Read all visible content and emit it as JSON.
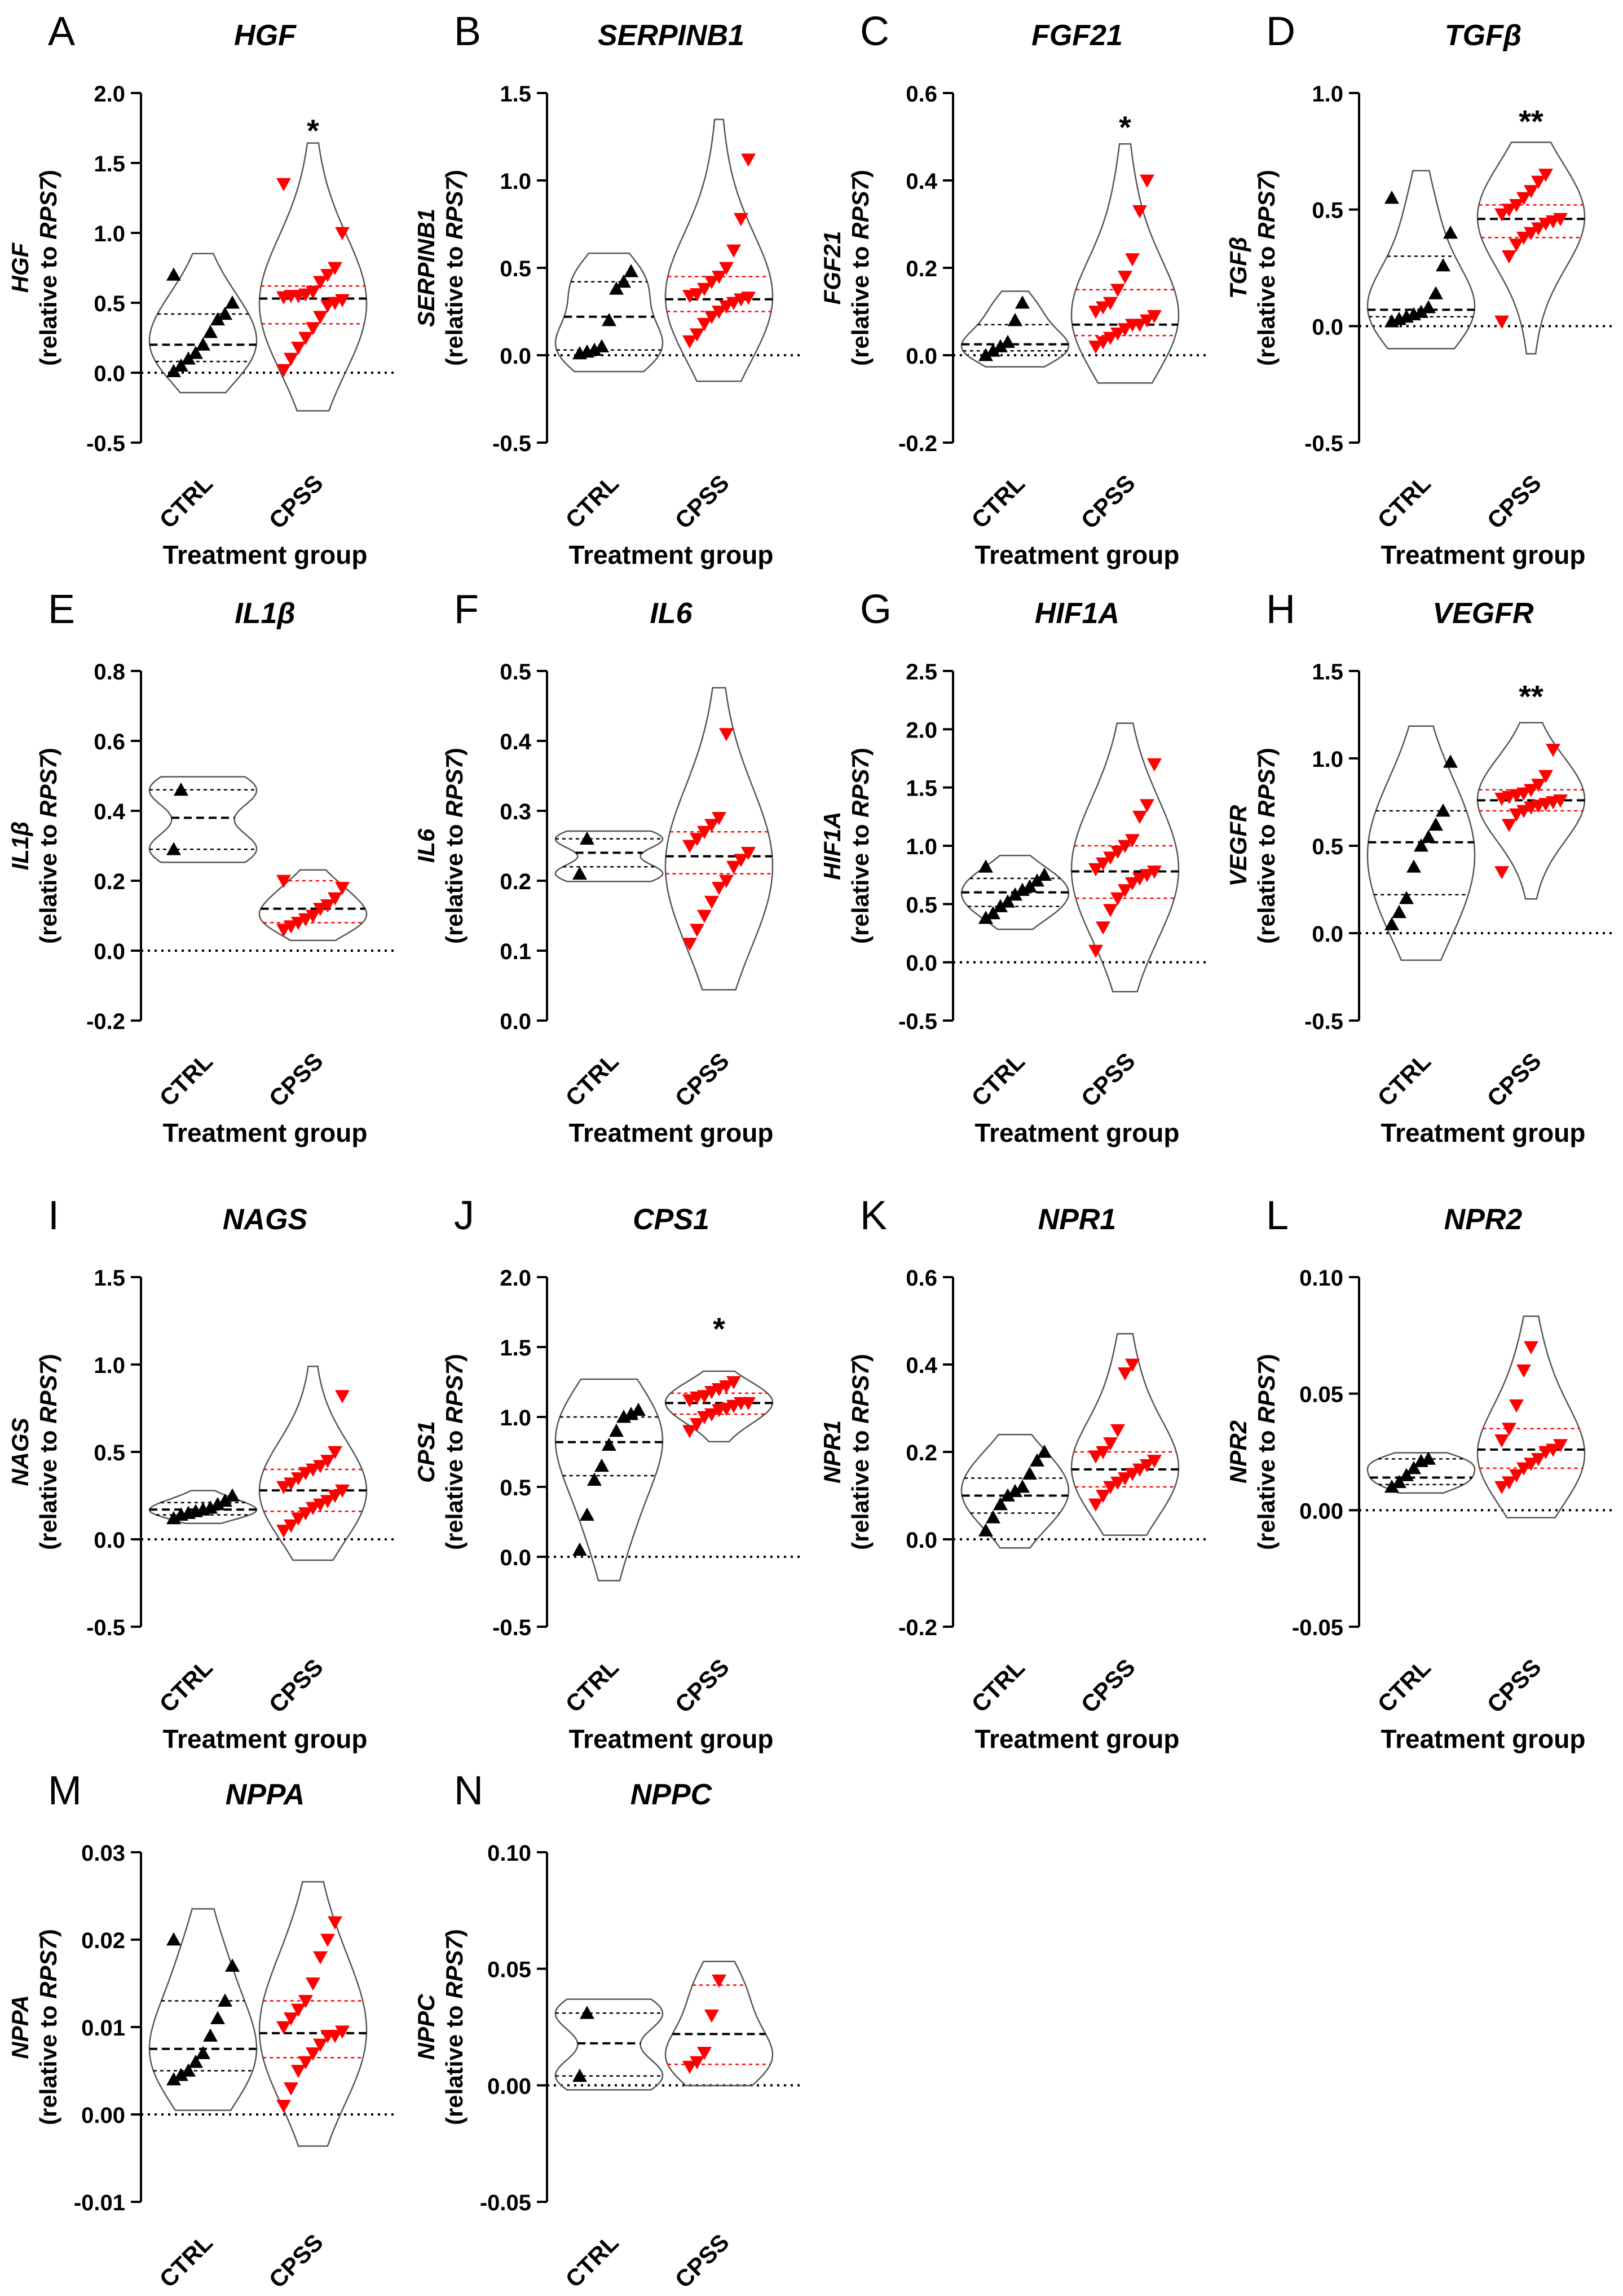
{
  "figure": {
    "xlabel": "Treatment group",
    "ylabel_suffix": "(relative to ",
    "ylabel_ref": "RPS7",
    "ylabel_close": ")"
  },
  "colors": {
    "ctrl": "#000000",
    "cpss": "#ff0000",
    "axis": "#000000",
    "violin": "#555555"
  },
  "chart_data": [
    {
      "type": "scatter",
      "letter": "A",
      "title": "HGF",
      "ylabel": "HGF",
      "categories": [
        "CTRL",
        "CPSS"
      ],
      "ylim": [
        -0.5,
        2.0
      ],
      "yticks": [
        "-0.5",
        "0.0",
        "0.5",
        "1.0",
        "1.5",
        "2.0"
      ],
      "sig": "*",
      "series": [
        {
          "values": [
            0.01,
            0.05,
            0.1,
            0.14,
            0.2,
            0.29,
            0.38,
            0.42,
            0.5,
            0.7
          ],
          "median": 0.2,
          "q1": 0.08,
          "q3": 0.42
        },
        {
          "values": [
            0.02,
            0.1,
            0.18,
            0.25,
            0.32,
            0.4,
            0.48,
            0.5,
            0.52,
            0.54,
            0.55,
            0.55,
            0.56,
            0.58,
            0.65,
            0.7,
            0.75,
            1.0,
            1.35
          ],
          "median": 0.53,
          "q1": 0.35,
          "q3": 0.62
        }
      ]
    },
    {
      "type": "scatter",
      "letter": "B",
      "title": "SERPINB1",
      "ylabel": "SERPINB1",
      "categories": [
        "CTRL",
        "CPSS"
      ],
      "ylim": [
        -0.5,
        1.5
      ],
      "yticks": [
        "-0.5",
        "0.0",
        "0.5",
        "1.0",
        "1.5"
      ],
      "sig": "",
      "series": [
        {
          "values": [
            0.01,
            0.02,
            0.03,
            0.05,
            0.2,
            0.38,
            0.42,
            0.48
          ],
          "median": 0.22,
          "q1": 0.03,
          "q3": 0.42
        },
        {
          "values": [
            0.08,
            0.12,
            0.18,
            0.22,
            0.25,
            0.28,
            0.3,
            0.32,
            0.33,
            0.34,
            0.35,
            0.38,
            0.42,
            0.45,
            0.5,
            0.6,
            0.78,
            1.12
          ],
          "median": 0.32,
          "q1": 0.25,
          "q3": 0.45
        }
      ]
    },
    {
      "type": "scatter",
      "letter": "C",
      "title": "FGF21",
      "ylabel": "FGF21",
      "categories": [
        "CTRL",
        "CPSS"
      ],
      "ylim": [
        -0.2,
        0.6
      ],
      "yticks": [
        "-0.2",
        "0.0",
        "0.2",
        "0.4",
        "0.6"
      ],
      "sig": "*",
      "series": [
        {
          "values": [
            0.0,
            0.01,
            0.02,
            0.03,
            0.08,
            0.12
          ],
          "median": 0.025,
          "q1": 0.01,
          "q3": 0.07
        },
        {
          "values": [
            0.02,
            0.03,
            0.04,
            0.05,
            0.06,
            0.07,
            0.07,
            0.08,
            0.09,
            0.1,
            0.11,
            0.12,
            0.15,
            0.18,
            0.22,
            0.33,
            0.4
          ],
          "median": 0.07,
          "q1": 0.045,
          "q3": 0.15
        }
      ]
    },
    {
      "type": "scatter",
      "letter": "D",
      "title": "TGFβ",
      "ylabel": "TGFβ",
      "categories": [
        "CTRL",
        "CPSS"
      ],
      "ylim": [
        -0.5,
        1.0
      ],
      "yticks": [
        "-0.5",
        "0.0",
        "0.5",
        "1.0"
      ],
      "sig": "**",
      "series": [
        {
          "values": [
            0.02,
            0.03,
            0.04,
            0.05,
            0.06,
            0.08,
            0.14,
            0.26,
            0.4,
            0.55
          ],
          "median": 0.07,
          "q1": 0.04,
          "q3": 0.3
        },
        {
          "values": [
            0.02,
            0.3,
            0.35,
            0.38,
            0.4,
            0.42,
            0.44,
            0.45,
            0.46,
            0.48,
            0.5,
            0.52,
            0.55,
            0.58,
            0.62,
            0.65
          ],
          "median": 0.46,
          "q1": 0.38,
          "q3": 0.52
        }
      ]
    },
    {
      "type": "scatter",
      "letter": "E",
      "title": "IL1β",
      "ylabel": "IL1β",
      "categories": [
        "CTRL",
        "CPSS"
      ],
      "ylim": [
        -0.2,
        0.8
      ],
      "yticks": [
        "-0.2",
        "0.0",
        "0.2",
        "0.4",
        "0.6",
        "0.8"
      ],
      "sig": "",
      "series": [
        {
          "values": [
            0.29,
            0.46
          ],
          "median": 0.38,
          "q1": 0.29,
          "q3": 0.46
        },
        {
          "values": [
            0.06,
            0.07,
            0.08,
            0.09,
            0.1,
            0.12,
            0.13,
            0.15,
            0.18,
            0.2
          ],
          "median": 0.12,
          "q1": 0.08,
          "q3": 0.2
        }
      ]
    },
    {
      "type": "scatter",
      "letter": "F",
      "title": "IL6",
      "ylabel": "IL6",
      "categories": [
        "CTRL",
        "CPSS"
      ],
      "ylim": [
        0.0,
        0.5
      ],
      "yticks": [
        "0.0",
        "0.1",
        "0.2",
        "0.3",
        "0.4",
        "0.5"
      ],
      "sig": "",
      "series": [
        {
          "values": [
            0.21,
            0.26
          ],
          "median": 0.24,
          "q1": 0.22,
          "q3": 0.26
        },
        {
          "values": [
            0.11,
            0.13,
            0.15,
            0.17,
            0.19,
            0.2,
            0.22,
            0.23,
            0.24,
            0.25,
            0.26,
            0.27,
            0.28,
            0.29,
            0.41
          ],
          "median": 0.235,
          "q1": 0.21,
          "q3": 0.27
        }
      ]
    },
    {
      "type": "scatter",
      "letter": "G",
      "title": "HIF1A",
      "ylabel": "HIF1A",
      "categories": [
        "CTRL",
        "CPSS"
      ],
      "ylim": [
        -0.5,
        2.5
      ],
      "yticks": [
        "-0.5",
        "0.0",
        "0.5",
        "1.0",
        "1.5",
        "2.0",
        "2.5"
      ],
      "sig": "",
      "series": [
        {
          "values": [
            0.38,
            0.42,
            0.48,
            0.52,
            0.58,
            0.62,
            0.65,
            0.7,
            0.75,
            0.82
          ],
          "median": 0.6,
          "q1": 0.48,
          "q3": 0.72
        },
        {
          "values": [
            0.1,
            0.3,
            0.45,
            0.55,
            0.62,
            0.68,
            0.72,
            0.75,
            0.78,
            0.8,
            0.85,
            0.9,
            0.95,
            1.0,
            1.05,
            1.25,
            1.35,
            1.7
          ],
          "median": 0.78,
          "q1": 0.55,
          "q3": 1.0
        }
      ]
    },
    {
      "type": "scatter",
      "letter": "H",
      "title": "VEGFR",
      "ylabel": "VEGFR",
      "categories": [
        "CTRL",
        "CPSS"
      ],
      "ylim": [
        -0.5,
        1.5
      ],
      "yticks": [
        "-0.5",
        "0.0",
        "0.5",
        "1.0",
        "1.5"
      ],
      "sig": "**",
      "series": [
        {
          "values": [
            0.05,
            0.12,
            0.2,
            0.38,
            0.5,
            0.55,
            0.62,
            0.7,
            0.98
          ],
          "median": 0.52,
          "q1": 0.22,
          "q3": 0.7
        },
        {
          "values": [
            0.35,
            0.62,
            0.68,
            0.7,
            0.72,
            0.73,
            0.74,
            0.75,
            0.76,
            0.77,
            0.78,
            0.79,
            0.8,
            0.82,
            0.85,
            0.9,
            1.05
          ],
          "median": 0.76,
          "q1": 0.7,
          "q3": 0.82
        }
      ]
    },
    {
      "type": "scatter",
      "letter": "I",
      "title": "NAGS",
      "ylabel": "NAGS",
      "categories": [
        "CTRL",
        "CPSS"
      ],
      "ylim": [
        -0.5,
        1.5
      ],
      "yticks": [
        "-0.5",
        "0.0",
        "0.5",
        "1.0",
        "1.5"
      ],
      "sig": "",
      "series": [
        {
          "values": [
            0.12,
            0.14,
            0.15,
            0.16,
            0.17,
            0.18,
            0.2,
            0.22,
            0.25
          ],
          "median": 0.17,
          "q1": 0.14,
          "q3": 0.21
        },
        {
          "values": [
            0.05,
            0.08,
            0.12,
            0.15,
            0.18,
            0.2,
            0.22,
            0.25,
            0.28,
            0.3,
            0.32,
            0.35,
            0.38,
            0.4,
            0.42,
            0.45,
            0.5,
            0.82
          ],
          "median": 0.28,
          "q1": 0.16,
          "q3": 0.4
        }
      ]
    },
    {
      "type": "scatter",
      "letter": "J",
      "title": "CPS1",
      "ylabel": "CPS1",
      "categories": [
        "CTRL",
        "CPSS"
      ],
      "ylim": [
        -0.5,
        2.0
      ],
      "yticks": [
        "-0.5",
        "0.0",
        "0.5",
        "1.0",
        "1.5",
        "2.0"
      ],
      "sig": "*",
      "series": [
        {
          "values": [
            0.05,
            0.3,
            0.55,
            0.65,
            0.8,
            0.9,
            1.0,
            1.02,
            1.05
          ],
          "median": 0.82,
          "q1": 0.58,
          "q3": 1.0
        },
        {
          "values": [
            0.9,
            0.95,
            1.0,
            1.02,
            1.05,
            1.06,
            1.08,
            1.1,
            1.1,
            1.12,
            1.14,
            1.15,
            1.18,
            1.2,
            1.22,
            1.25
          ],
          "median": 1.1,
          "q1": 1.02,
          "q3": 1.17
        }
      ]
    },
    {
      "type": "scatter",
      "letter": "K",
      "title": "NPR1",
      "ylabel": "NPR1",
      "categories": [
        "CTRL",
        "CPSS"
      ],
      "ylim": [
        -0.2,
        0.6
      ],
      "yticks": [
        "-0.2",
        "0.0",
        "0.2",
        "0.4",
        "0.6"
      ],
      "sig": "",
      "series": [
        {
          "values": [
            0.02,
            0.05,
            0.08,
            0.1,
            0.11,
            0.12,
            0.15,
            0.18,
            0.2
          ],
          "median": 0.1,
          "q1": 0.06,
          "q3": 0.14
        },
        {
          "values": [
            0.08,
            0.1,
            0.12,
            0.13,
            0.14,
            0.15,
            0.16,
            0.17,
            0.18,
            0.19,
            0.2,
            0.22,
            0.25,
            0.38,
            0.4
          ],
          "median": 0.16,
          "q1": 0.12,
          "q3": 0.2
        }
      ]
    },
    {
      "type": "scatter",
      "letter": "L",
      "title": "NPR2",
      "ylabel": "NPR2",
      "categories": [
        "CTRL",
        "CPSS"
      ],
      "ylim": [
        -0.05,
        0.1
      ],
      "yticks": [
        "-0.05",
        "0.00",
        "0.05",
        "0.10"
      ],
      "sig": "",
      "series": [
        {
          "values": [
            0.01,
            0.012,
            0.015,
            0.018,
            0.021,
            0.022
          ],
          "median": 0.014,
          "q1": 0.011,
          "q3": 0.022
        },
        {
          "values": [
            0.01,
            0.012,
            0.015,
            0.018,
            0.02,
            0.022,
            0.025,
            0.026,
            0.028,
            0.03,
            0.035,
            0.045,
            0.06,
            0.07
          ],
          "median": 0.026,
          "q1": 0.018,
          "q3": 0.035
        }
      ]
    },
    {
      "type": "scatter",
      "letter": "M",
      "title": "NPPA",
      "ylabel": "NPPA",
      "categories": [
        "CTRL",
        "CPSS"
      ],
      "ylim": [
        -0.01,
        0.03
      ],
      "yticks": [
        "-0.01",
        "0.00",
        "0.01",
        "0.02",
        "0.03"
      ],
      "sig": "",
      "series": [
        {
          "values": [
            0.004,
            0.0045,
            0.005,
            0.006,
            0.007,
            0.009,
            0.011,
            0.013,
            0.017,
            0.02
          ],
          "median": 0.0075,
          "q1": 0.005,
          "q3": 0.013
        },
        {
          "values": [
            0.001,
            0.003,
            0.005,
            0.006,
            0.007,
            0.008,
            0.009,
            0.009,
            0.0095,
            0.01,
            0.011,
            0.012,
            0.013,
            0.015,
            0.018,
            0.02,
            0.022
          ],
          "median": 0.0093,
          "q1": 0.0065,
          "q3": 0.013
        }
      ]
    },
    {
      "type": "scatter",
      "letter": "N",
      "title": "NPPC",
      "ylabel": "NPPC",
      "categories": [
        "CTRL",
        "CPSS"
      ],
      "ylim": [
        -0.05,
        0.1
      ],
      "yticks": [
        "-0.05",
        "0.00",
        "0.05",
        "0.10"
      ],
      "sig": "",
      "series": [
        {
          "values": [
            0.004,
            0.031
          ],
          "median": 0.018,
          "q1": 0.004,
          "q3": 0.031
        },
        {
          "values": [
            0.008,
            0.01,
            0.014,
            0.03,
            0.045
          ],
          "median": 0.022,
          "q1": 0.009,
          "q3": 0.043
        }
      ]
    }
  ]
}
